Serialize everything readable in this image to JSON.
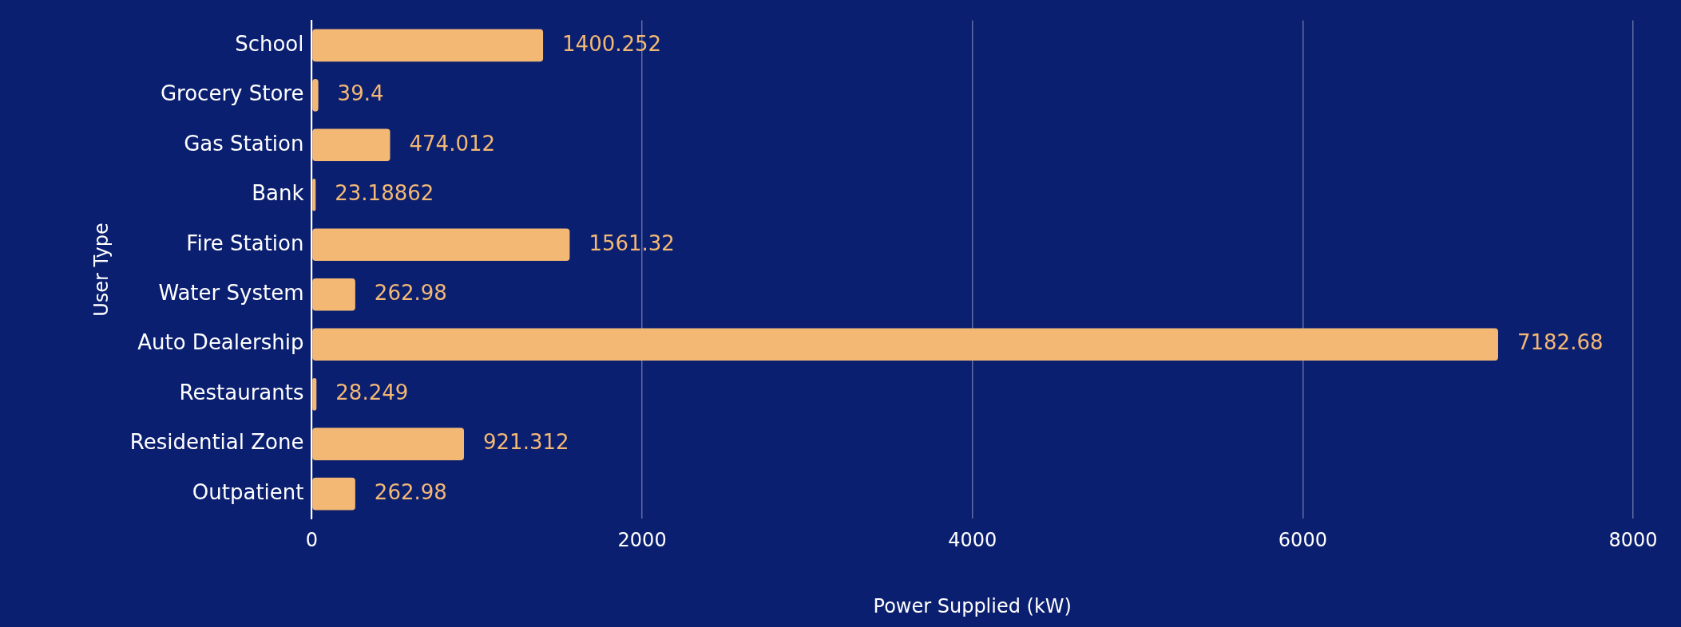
{
  "chart_data": {
    "type": "bar",
    "orientation": "horizontal",
    "xlabel": "Power Supplied (kW)",
    "ylabel": "User Type",
    "categories": [
      "School",
      "Grocery Store",
      "Gas Station",
      "Bank",
      "Fire Station",
      "Water System",
      "Auto Dealership",
      "Restaurants",
      "Residential Zone",
      "Outpatient"
    ],
    "values": [
      1400.252,
      39.4,
      474.012,
      23.18862,
      1561.32,
      262.98,
      7182.68,
      28.249,
      921.312,
      262.98
    ],
    "color": "#f3b874",
    "xlim": [
      0,
      8000
    ],
    "xticks": [
      0,
      2000,
      4000,
      6000,
      8000
    ],
    "grid": "x",
    "data_labels": true,
    "legend": false
  }
}
